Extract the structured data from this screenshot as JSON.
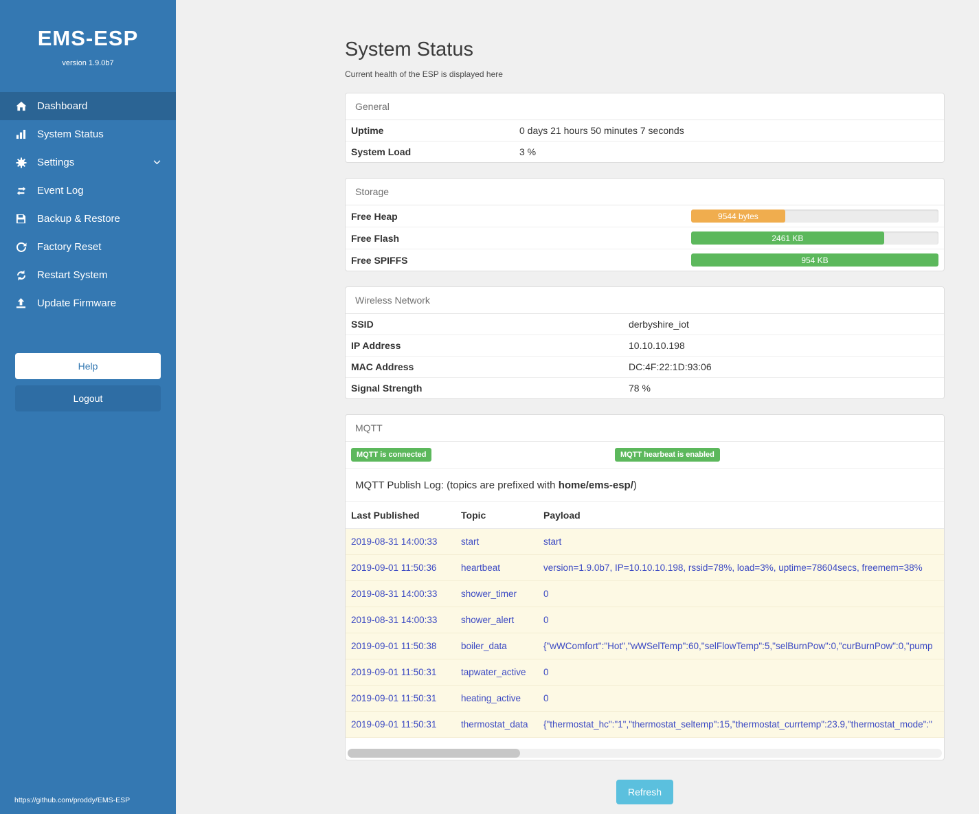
{
  "colors": {
    "sidebar_blue": "#3478b2",
    "active_blue": "#2b6494",
    "success_green": "#5cb85c",
    "warning_orange": "#f0ad4e",
    "info_cyan": "#5bc0de",
    "log_text_blue": "#3b49c3"
  },
  "sidebar": {
    "title": "EMS-ESP",
    "version": "version 1.9.0b7",
    "items": [
      {
        "label": "Dashboard",
        "icon": "home-icon",
        "active": true
      },
      {
        "label": "System Status",
        "icon": "chart-icon",
        "active": false
      },
      {
        "label": "Settings",
        "icon": "gear-icon",
        "active": false,
        "chevron": "down"
      },
      {
        "label": "Event Log",
        "icon": "swap-arrows-icon",
        "active": false
      },
      {
        "label": "Backup & Restore",
        "icon": "floppy-icon",
        "active": false
      },
      {
        "label": "Factory Reset",
        "icon": "reset-arrow-icon",
        "active": false
      },
      {
        "label": "Restart System",
        "icon": "restart-cycle-icon",
        "active": false
      },
      {
        "label": "Update Firmware",
        "icon": "upload-icon",
        "active": false
      }
    ],
    "help_label": "Help",
    "logout_label": "Logout",
    "footer": "https://github.com/proddy/EMS-ESP"
  },
  "page": {
    "title": "System Status",
    "subtitle": "Current health of the ESP is displayed here"
  },
  "general": {
    "header": "General",
    "rows": [
      {
        "label": "Uptime",
        "value": "0 days 21 hours 50 minutes 7 seconds"
      },
      {
        "label": "System Load",
        "value": "3 %"
      }
    ]
  },
  "storage": {
    "header": "Storage",
    "rows": [
      {
        "label": "Free Heap",
        "value": "9544 bytes",
        "percent": 38,
        "color": "#f0ad4e"
      },
      {
        "label": "Free Flash",
        "value": "2461 KB",
        "percent": 78,
        "color": "#5cb85c"
      },
      {
        "label": "Free SPIFFS",
        "value": "954 KB",
        "percent": 100,
        "color": "#5cb85c"
      }
    ]
  },
  "wireless": {
    "header": "Wireless Network",
    "rows": [
      {
        "label": "SSID",
        "value": "derbyshire_iot"
      },
      {
        "label": "IP Address",
        "value": "10.10.10.198"
      },
      {
        "label": "MAC Address",
        "value": "DC:4F:22:1D:93:06"
      },
      {
        "label": "Signal Strength",
        "value": "78 %"
      }
    ]
  },
  "mqtt": {
    "header": "MQTT",
    "badges": [
      "MQTT is connected",
      "MQTT hearbeat is enabled"
    ],
    "log_title_prefix": "MQTT Publish Log: (topics are prefixed with ",
    "log_title_bold": "home/ems-esp/",
    "log_title_suffix": ")",
    "table": {
      "headers": [
        "Last Published",
        "Topic",
        "Payload"
      ],
      "rows": [
        {
          "time": "2019-08-31 14:00:33",
          "topic": "start",
          "payload": "start"
        },
        {
          "time": "2019-09-01 11:50:36",
          "topic": "heartbeat",
          "payload": "version=1.9.0b7, IP=10.10.10.198, rssid=78%, load=3%, uptime=78604secs, freemem=38%"
        },
        {
          "time": "2019-08-31 14:00:33",
          "topic": "shower_timer",
          "payload": "0"
        },
        {
          "time": "2019-08-31 14:00:33",
          "topic": "shower_alert",
          "payload": "0"
        },
        {
          "time": "2019-09-01 11:50:38",
          "topic": "boiler_data",
          "payload": "{\"wWComfort\":\"Hot\",\"wWSelTemp\":60,\"selFlowTemp\":5,\"selBurnPow\":0,\"curBurnPow\":0,\"pump"
        },
        {
          "time": "2019-09-01 11:50:31",
          "topic": "tapwater_active",
          "payload": "0"
        },
        {
          "time": "2019-09-01 11:50:31",
          "topic": "heating_active",
          "payload": "0"
        },
        {
          "time": "2019-09-01 11:50:31",
          "topic": "thermostat_data",
          "payload": "{\"thermostat_hc\":\"1\",\"thermostat_seltemp\":15,\"thermostat_currtemp\":23.9,\"thermostat_mode\":\""
        }
      ]
    },
    "refresh_label": "Refresh"
  }
}
